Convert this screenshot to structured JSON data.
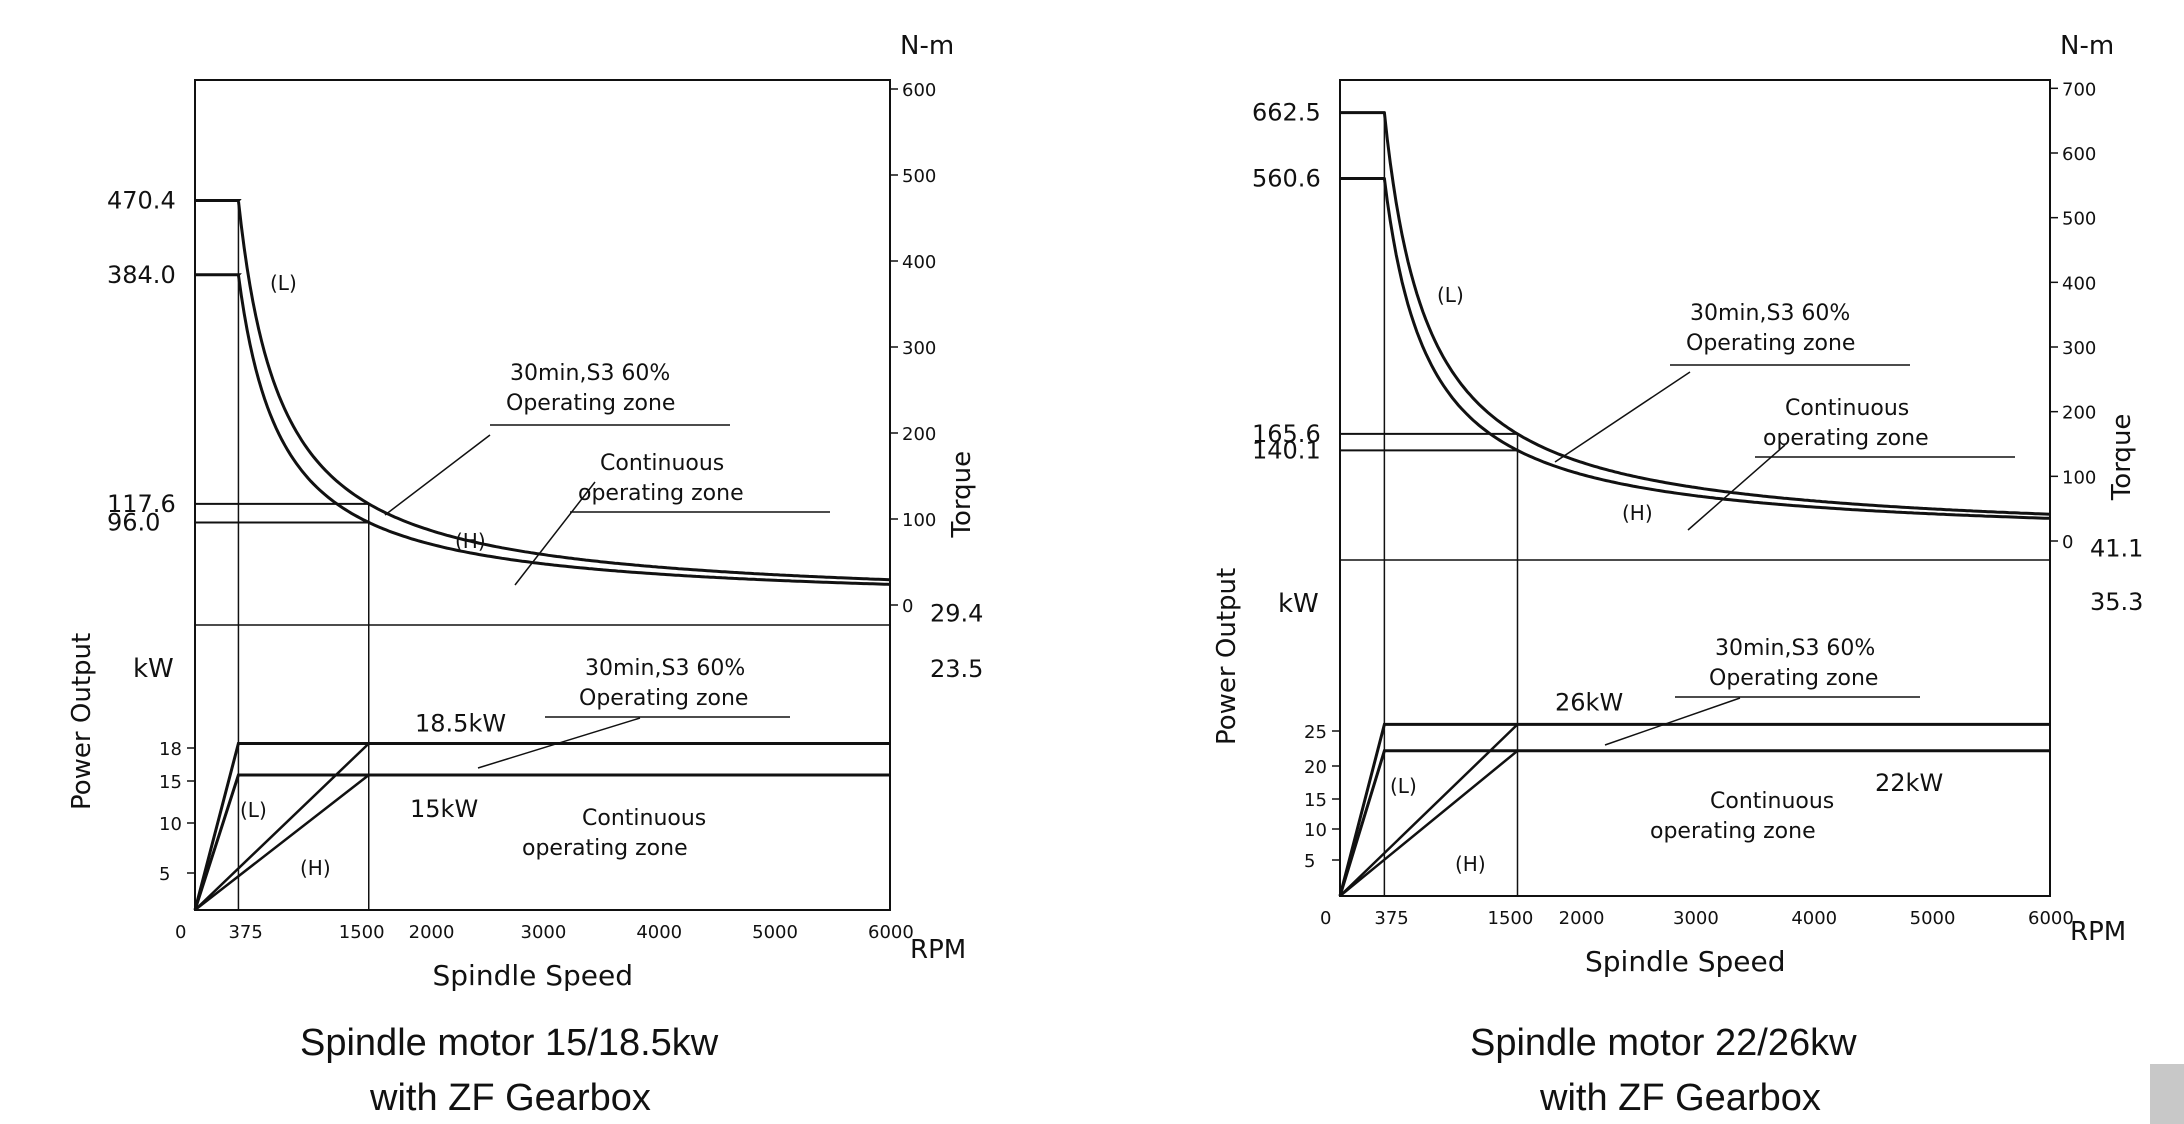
{
  "charts": [
    {
      "caption_line1": "Spindle motor 15/18.5kw",
      "caption_line2": "with  ZF Gearbox",
      "x_title": "Spindle Speed",
      "x_unit": "RPM",
      "x_ticks": [
        "0",
        "375",
        "1500",
        "2000",
        "3000",
        "4000",
        "5000",
        "6000"
      ],
      "x_tick_values": [
        0,
        375,
        1500,
        2000,
        3000,
        4000,
        5000,
        6000
      ],
      "torque": {
        "unit": "N-m",
        "axis_title": "Torque",
        "ticks": [
          "0",
          "100",
          "200",
          "300",
          "400",
          "500",
          "600"
        ],
        "tick_values": [
          0,
          100,
          200,
          300,
          400,
          500,
          600
        ],
        "labels_left": [
          "470.4",
          "384.0",
          "117.6",
          "96.0"
        ],
        "labels_right": [
          "29.4",
          "23.5"
        ],
        "curve_labels": [
          "(L)",
          "(H)"
        ],
        "zone_s3_line1": "30min,S3  60%",
        "zone_s3_line2": "Operating  zone",
        "zone_cont_line1": "Continuous",
        "zone_cont_line2": "operating  zone"
      },
      "power": {
        "unit": "kW",
        "axis_title": "Power Output",
        "ticks": [
          "5",
          "10",
          "15",
          "18"
        ],
        "tick_values": [
          5,
          10,
          15,
          18
        ],
        "labels": [
          "18.5kW",
          "15kW"
        ],
        "curve_labels": [
          "(L)",
          "(H)"
        ],
        "zone_s3_line1": "30min,S3  60%",
        "zone_s3_line2": "Operating  zone",
        "zone_cont_line1": "Continuous",
        "zone_cont_line2": "operating  zone"
      }
    },
    {
      "caption_line1": "Spindle motor 22/26kw",
      "caption_line2": "with  ZF Gearbox",
      "x_title": "Spindle Speed",
      "x_unit": "RPM",
      "x_ticks": [
        "0",
        "375",
        "1500",
        "2000",
        "3000",
        "4000",
        "5000",
        "6000"
      ],
      "x_tick_values": [
        0,
        375,
        1500,
        2000,
        3000,
        4000,
        5000,
        6000
      ],
      "torque": {
        "unit": "N-m",
        "axis_title": "Torque",
        "ticks": [
          "0",
          "100",
          "200",
          "300",
          "400",
          "500",
          "600",
          "700"
        ],
        "tick_values": [
          0,
          100,
          200,
          300,
          400,
          500,
          600,
          700
        ],
        "labels_left": [
          "662.5",
          "560.6",
          "165.6",
          "140.1"
        ],
        "labels_right": [
          "41.1",
          "35.3"
        ],
        "curve_labels": [
          "(L)",
          "(H)"
        ],
        "zone_s3_line1": "30min,S3  60%",
        "zone_s3_line2": "Operating  zone",
        "zone_cont_line1": "Continuous",
        "zone_cont_line2": "operating  zone"
      },
      "power": {
        "unit": "kW",
        "axis_title": "Power Output",
        "ticks": [
          "5",
          "10",
          "15",
          "20",
          "25"
        ],
        "tick_values": [
          5,
          10,
          15,
          20,
          25
        ],
        "labels": [
          "26kW",
          "22kW"
        ],
        "curve_labels": [
          "(L)",
          "(H)"
        ],
        "zone_s3_line1": "30min,S3  60%",
        "zone_s3_line2": "Operating  zone",
        "zone_cont_line1": "Continuous",
        "zone_cont_line2": "operating  zone"
      }
    }
  ],
  "chart_data": [
    {
      "type": "line",
      "xlabel": "Spindle Speed",
      "x_unit": "RPM",
      "xlim": [
        0,
        6000
      ],
      "torque_ylim": [
        0,
        600
      ],
      "power_ylim": [
        0,
        25
      ],
      "torque_series": [
        {
          "name": "30min,S3  60%",
          "x": [
            0,
            375,
            1500,
            6000
          ],
          "y": [
            470.4,
            470.4,
            117.6,
            29.4
          ]
        },
        {
          "name": "Continuous",
          "x": [
            0,
            375,
            1500,
            6000
          ],
          "y": [
            384.0,
            384.0,
            96.0,
            23.5
          ]
        }
      ],
      "power_series": [
        {
          "name": "30min,S3  60%",
          "x": [
            0,
            375,
            6000
          ],
          "y": [
            0,
            18.5,
            18.5
          ]
        },
        {
          "name": "Continuous",
          "x": [
            0,
            375,
            6000
          ],
          "y": [
            0,
            15,
            15
          ]
        }
      ],
      "power_h_series": [
        {
          "name": "(H)",
          "x": [
            0,
            1500
          ],
          "y": [
            0,
            18.5
          ]
        },
        {
          "name": "(H)",
          "x": [
            0,
            1500
          ],
          "y": [
            0,
            15
          ]
        }
      ]
    },
    {
      "type": "line",
      "xlabel": "Spindle Speed",
      "x_unit": "RPM",
      "xlim": [
        0,
        6000
      ],
      "torque_ylim": [
        0,
        700
      ],
      "power_ylim": [
        0,
        30
      ],
      "torque_series": [
        {
          "name": "30min,S3  60%",
          "x": [
            0,
            375,
            1500,
            6000
          ],
          "y": [
            662.5,
            662.5,
            165.6,
            41.1
          ]
        },
        {
          "name": "Continuous",
          "x": [
            0,
            375,
            1500,
            6000
          ],
          "y": [
            560.6,
            560.6,
            140.1,
            35.3
          ]
        }
      ],
      "power_series": [
        {
          "name": "30min,S3  60%",
          "x": [
            0,
            375,
            6000
          ],
          "y": [
            0,
            26,
            26
          ]
        },
        {
          "name": "Continuous",
          "x": [
            0,
            375,
            6000
          ],
          "y": [
            0,
            22,
            22
          ]
        }
      ],
      "power_h_series": [
        {
          "name": "(H)",
          "x": [
            0,
            1500
          ],
          "y": [
            0,
            26
          ]
        },
        {
          "name": "(H)",
          "x": [
            0,
            1500
          ],
          "y": [
            0,
            22
          ]
        }
      ]
    }
  ]
}
